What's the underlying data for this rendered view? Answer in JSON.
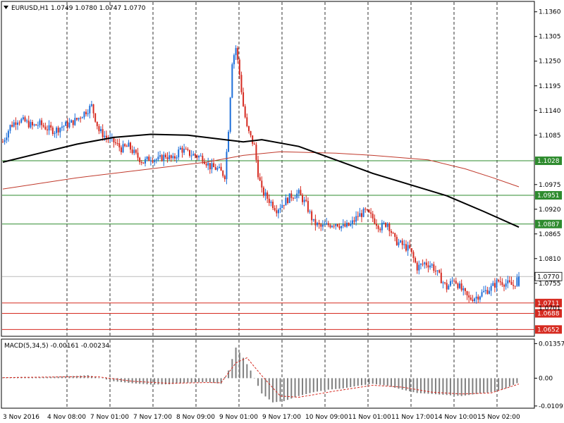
{
  "header": {
    "symbol_line": "EURUSD,H1  1.0749 1.0780 1.0747 1.0770"
  },
  "macd_header": "MACD(5,34,5) -0.00161 -0.00234",
  "colors": {
    "bull": "#1e6fd9",
    "bear": "#d62a20",
    "ma_black": "#000000",
    "ma_red": "#c0392b",
    "support_line": "#2e8b2e",
    "resistance_line": "#d62a20",
    "hist": "#7f7f7f",
    "signal": "#d62a20"
  },
  "chart_data": [
    {
      "type": "candlestick",
      "title": "EURUSD,H1",
      "ohlc_last": {
        "open": 1.0749,
        "high": 1.078,
        "low": 1.0747,
        "close": 1.077
      },
      "ylim": [
        1.064,
        1.138
      ],
      "y_ticks": [
        "1.1360",
        "1.1305",
        "1.1250",
        "1.1195",
        "1.1140",
        "1.1085",
        "1.0975",
        "1.0920",
        "1.0865",
        "1.0810",
        "1.0755"
      ],
      "x_ticks": [
        "3 Nov 2016",
        "4 Nov 08:00",
        "7 Nov 01:00",
        "7 Nov 17:00",
        "8 Nov 09:00",
        "9 Nov 01:00",
        "9 Nov 17:00",
        "10 Nov 09:00",
        "11 Nov 01:00",
        "11 Nov 17:00",
        "14 Nov 10:00",
        "15 Nov 02:00"
      ],
      "horizontal_levels": [
        {
          "value": 1.1028,
          "label": "1.1028",
          "color": "green"
        },
        {
          "value": 1.0951,
          "label": "1.0951",
          "color": "green"
        },
        {
          "value": 1.0887,
          "label": "1.0887",
          "color": "green"
        },
        {
          "value": 1.0711,
          "label": "1.0711",
          "color": "red"
        },
        {
          "value": 1.0688,
          "label": "1.0688",
          "color": "red"
        },
        {
          "value": 1.0652,
          "label": "1.0652",
          "color": "red"
        }
      ],
      "current_price": {
        "value": 1.077,
        "label": "1.0770"
      },
      "overlay_label": "1.0701",
      "close_path": [
        [
          0,
          1.107
        ],
        [
          4,
          1.1105
        ],
        [
          8,
          1.112
        ],
        [
          12,
          1.1115
        ],
        [
          16,
          1.1105
        ],
        [
          20,
          1.111
        ],
        [
          24,
          1.11
        ],
        [
          28,
          1.1095
        ],
        [
          32,
          1.1105
        ],
        [
          36,
          1.111
        ],
        [
          40,
          1.112
        ],
        [
          44,
          1.1135
        ],
        [
          48,
          1.115
        ],
        [
          52,
          1.1095
        ],
        [
          56,
          1.108
        ],
        [
          60,
          1.107
        ],
        [
          64,
          1.1055
        ],
        [
          68,
          1.106
        ],
        [
          72,
          1.104
        ],
        [
          76,
          1.1025
        ],
        [
          80,
          1.1035
        ],
        [
          84,
          1.103
        ],
        [
          88,
          1.104
        ],
        [
          92,
          1.103
        ],
        [
          96,
          1.1055
        ],
        [
          100,
          1.1045
        ],
        [
          104,
          1.104
        ],
        [
          108,
          1.1035
        ],
        [
          112,
          1.1015
        ],
        [
          116,
          1.101
        ],
        [
          120,
          1.0995
        ],
        [
          122,
          1.11
        ],
        [
          124,
          1.125
        ],
        [
          126,
          1.128
        ],
        [
          128,
          1.122
        ],
        [
          130,
          1.115
        ],
        [
          132,
          1.11
        ],
        [
          134,
          1.108
        ],
        [
          136,
          1.106
        ],
        [
          138,
          1.1
        ],
        [
          140,
          1.096
        ],
        [
          144,
          1.094
        ],
        [
          148,
          1.092
        ],
        [
          152,
          1.0935
        ],
        [
          156,
          1.095
        ],
        [
          160,
          1.0955
        ],
        [
          164,
          1.093
        ],
        [
          168,
          1.089
        ],
        [
          172,
          1.088
        ],
        [
          176,
          1.0885
        ],
        [
          180,
          1.089
        ],
        [
          184,
          1.088
        ],
        [
          188,
          1.0885
        ],
        [
          192,
          1.0905
        ],
        [
          196,
          1.0915
        ],
        [
          200,
          1.09
        ],
        [
          204,
          1.088
        ],
        [
          208,
          1.089
        ],
        [
          212,
          1.085
        ],
        [
          216,
          1.084
        ],
        [
          220,
          1.083
        ],
        [
          224,
          1.079
        ],
        [
          228,
          1.08
        ],
        [
          232,
          1.0795
        ],
        [
          236,
          1.077
        ],
        [
          240,
          1.0745
        ],
        [
          244,
          1.0765
        ],
        [
          248,
          1.074
        ],
        [
          252,
          1.072
        ],
        [
          256,
          1.0725
        ],
        [
          260,
          1.0735
        ],
        [
          264,
          1.0745
        ],
        [
          268,
          1.076
        ],
        [
          272,
          1.0755
        ],
        [
          276,
          1.075
        ],
        [
          279,
          1.077
        ]
      ],
      "ma_black": [
        [
          0,
          1.1025
        ],
        [
          20,
          1.1045
        ],
        [
          40,
          1.1065
        ],
        [
          60,
          1.108
        ],
        [
          80,
          1.1087
        ],
        [
          100,
          1.1085
        ],
        [
          120,
          1.1075
        ],
        [
          130,
          1.107
        ],
        [
          140,
          1.1075
        ],
        [
          160,
          1.106
        ],
        [
          180,
          1.103
        ],
        [
          200,
          1.1
        ],
        [
          220,
          1.0975
        ],
        [
          240,
          1.095
        ],
        [
          260,
          1.0915
        ],
        [
          279,
          1.088
        ]
      ],
      "ma_red": [
        [
          0,
          1.0965
        ],
        [
          40,
          1.099
        ],
        [
          80,
          1.101
        ],
        [
          110,
          1.1025
        ],
        [
          130,
          1.104
        ],
        [
          150,
          1.1048
        ],
        [
          180,
          1.1045
        ],
        [
          200,
          1.104
        ],
        [
          230,
          1.103
        ],
        [
          250,
          1.101
        ],
        [
          265,
          1.099
        ],
        [
          279,
          1.097
        ]
      ]
    },
    {
      "type": "macd",
      "title": "MACD(5,34,5)",
      "values_last": {
        "macd": -0.00161,
        "signal": -0.00234
      },
      "ylim": [
        -0.0115,
        0.0145
      ],
      "y_ticks": [
        "0.01357",
        "0.00",
        "-0.01091"
      ],
      "histogram": [
        [
          0,
          0.0003
        ],
        [
          10,
          0.0005
        ],
        [
          20,
          0.0004
        ],
        [
          30,
          0.0006
        ],
        [
          40,
          0.0009
        ],
        [
          46,
          0.0012
        ],
        [
          52,
          0.0002
        ],
        [
          60,
          -0.0012
        ],
        [
          70,
          -0.002
        ],
        [
          80,
          -0.0025
        ],
        [
          90,
          -0.0024
        ],
        [
          100,
          -0.0018
        ],
        [
          110,
          -0.0015
        ],
        [
          118,
          -0.0022
        ],
        [
          122,
          0.003
        ],
        [
          126,
          0.012
        ],
        [
          130,
          0.008
        ],
        [
          134,
          0.003
        ],
        [
          140,
          -0.006
        ],
        [
          146,
          -0.0095
        ],
        [
          152,
          -0.009
        ],
        [
          160,
          -0.007
        ],
        [
          168,
          -0.0055
        ],
        [
          176,
          -0.0045
        ],
        [
          184,
          -0.004
        ],
        [
          192,
          -0.003
        ],
        [
          200,
          -0.0022
        ],
        [
          208,
          -0.003
        ],
        [
          216,
          -0.0045
        ],
        [
          224,
          -0.0058
        ],
        [
          232,
          -0.0062
        ],
        [
          240,
          -0.0066
        ],
        [
          248,
          -0.007
        ],
        [
          256,
          -0.0062
        ],
        [
          264,
          -0.0055
        ],
        [
          272,
          -0.004
        ],
        [
          279,
          -0.0016
        ]
      ],
      "signal": [
        [
          0,
          0.0002
        ],
        [
          20,
          0.0004
        ],
        [
          40,
          0.0006
        ],
        [
          52,
          0.0005
        ],
        [
          70,
          -0.0012
        ],
        [
          90,
          -0.002
        ],
        [
          110,
          -0.0017
        ],
        [
          118,
          -0.0018
        ],
        [
          126,
          0.006
        ],
        [
          132,
          0.008
        ],
        [
          140,
          0.001
        ],
        [
          150,
          -0.007
        ],
        [
          160,
          -0.0075
        ],
        [
          180,
          -0.005
        ],
        [
          200,
          -0.0028
        ],
        [
          216,
          -0.0035
        ],
        [
          232,
          -0.0055
        ],
        [
          248,
          -0.0062
        ],
        [
          264,
          -0.0058
        ],
        [
          279,
          -0.0023
        ]
      ]
    }
  ]
}
